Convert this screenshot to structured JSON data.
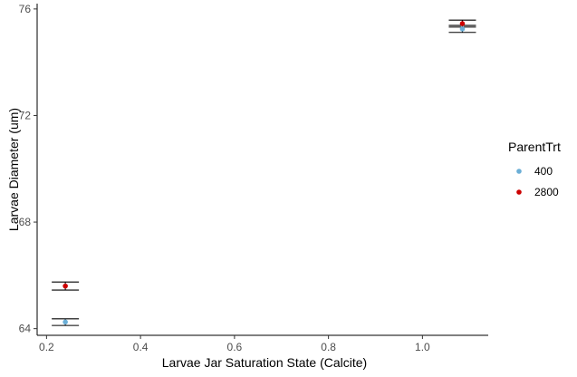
{
  "chart_data": {
    "type": "scatter",
    "xlabel": "Larvae Jar Saturation State (Calcite)",
    "ylabel": "Larvae Diameter (um)",
    "xlim": [
      0.18,
      1.14
    ],
    "ylim": [
      63.75,
      76.2
    ],
    "x_ticks": [
      0.2,
      0.4,
      0.6,
      0.8,
      1.0
    ],
    "x_tick_labels": [
      "0.2",
      "0.4",
      "0.6",
      "0.8",
      "1.0"
    ],
    "y_ticks": [
      64,
      68,
      72,
      76
    ],
    "y_tick_labels": [
      "64",
      "68",
      "72",
      "76"
    ],
    "grid": false,
    "legend": {
      "title": "ParentTrt",
      "position": "right"
    },
    "series": [
      {
        "name": "400",
        "color": "#6baed6",
        "points": [
          {
            "x": 0.24,
            "y": 64.25,
            "lower": 64.12,
            "upper": 64.37
          },
          {
            "x": 1.085,
            "y": 75.25,
            "lower": 75.12,
            "upper": 75.38
          }
        ]
      },
      {
        "name": "2800",
        "color": "#cc0000",
        "points": [
          {
            "x": 0.24,
            "y": 65.6,
            "lower": 65.45,
            "upper": 65.75
          },
          {
            "x": 1.085,
            "y": 75.45,
            "lower": 75.32,
            "upper": 75.58
          }
        ]
      }
    ]
  }
}
